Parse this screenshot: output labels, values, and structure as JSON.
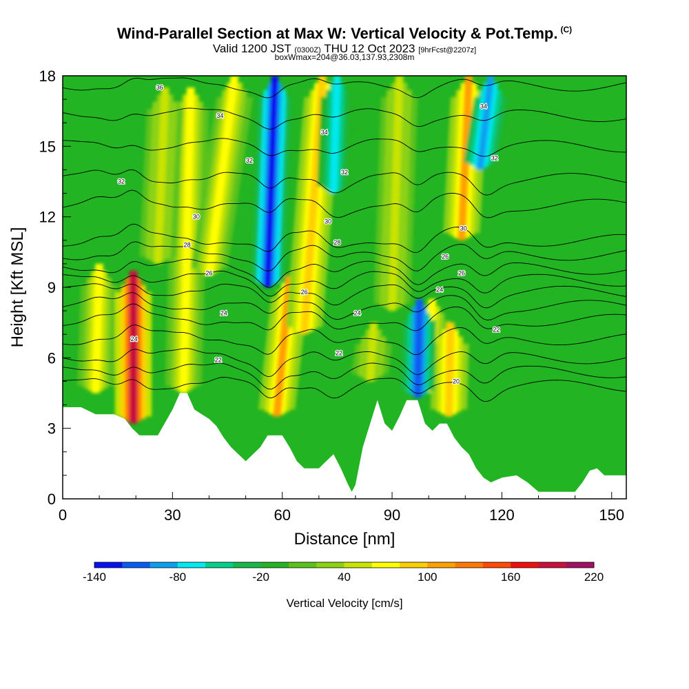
{
  "header": {
    "title": "Wind-Parallel Section at Max W: Vertical Velocity & Pot.Temp.",
    "copyright": "(C)",
    "valid_prefix": "Valid 1200 JST",
    "utc": "(0300Z)",
    "valid_date": "THU 12 Oct 2023",
    "forecast": "[9hrFcst@2207z]",
    "box_info": "boxWmax=204@36.03,137.93,2308m"
  },
  "chart_data": {
    "type": "heatmap",
    "xlabel": "Distance [nm]",
    "ylabel": "Height [Kft MSL]",
    "xlim": [
      0,
      154
    ],
    "ylim": [
      0,
      18
    ],
    "x_ticks": [
      "0",
      "30",
      "60",
      "90",
      "120",
      "150"
    ],
    "y_ticks": [
      "0",
      "3",
      "6",
      "9",
      "12",
      "15",
      "18"
    ],
    "x_tick_values": [
      0,
      30,
      60,
      90,
      120,
      150
    ],
    "y_tick_values": [
      0,
      3,
      6,
      9,
      12,
      15,
      18
    ],
    "colorbar": {
      "label": "Vertical Velocity [cm/s]",
      "tick_labels": [
        "-140",
        "-80",
        "-20",
        "40",
        "100",
        "160",
        "220"
      ],
      "tick_values": [
        -140,
        -80,
        -20,
        40,
        100,
        160,
        220
      ],
      "levels": [
        -140,
        -120,
        -100,
        -80,
        -60,
        -40,
        -20,
        0,
        20,
        40,
        60,
        80,
        100,
        120,
        140,
        160,
        180,
        200,
        220
      ],
      "colors": [
        "#0a10f0",
        "#0a5cf0",
        "#0aa0f0",
        "#00e8f0",
        "#00d08c",
        "#18b84c",
        "#22b422",
        "#5ac21a",
        "#8cd212",
        "#c8e400",
        "#ffff00",
        "#ffd000",
        "#ffa000",
        "#ff7800",
        "#ff4a00",
        "#f01010",
        "#c8103c",
        "#a01064"
      ]
    },
    "background_color": "#22b422",
    "updraft_columns": [
      {
        "x": 9,
        "x2": 10,
        "y_bottom": 4.5,
        "y_top": 10.0,
        "w": 60
      },
      {
        "x": 19.3,
        "x2": 19.3,
        "y_bottom": 3.2,
        "y_top": 9.7,
        "w": 180
      },
      {
        "x": 33,
        "x2": 35,
        "y_bottom": 4.5,
        "y_top": 17.5,
        "w": 60
      },
      {
        "x": 26,
        "x2": 28,
        "y_bottom": 10,
        "y_top": 17.5,
        "w": 40
      },
      {
        "x": 40,
        "x2": 47,
        "y_bottom": 9.5,
        "y_top": 18,
        "w": 60
      },
      {
        "x": 58.5,
        "x2": 62,
        "y_bottom": 3.5,
        "y_top": 9.5,
        "w": 100
      },
      {
        "x": 66,
        "x2": 71,
        "y_bottom": 7,
        "y_top": 18,
        "w": 80
      },
      {
        "x": 84,
        "x2": 85,
        "y_bottom": 5.0,
        "y_top": 7.5,
        "w": 50
      },
      {
        "x": 90,
        "x2": 92,
        "y_bottom": 8,
        "y_top": 18,
        "w": 40
      },
      {
        "x": 99.5,
        "x2": 101,
        "y_bottom": 4.5,
        "y_top": 8.5,
        "w": 60
      },
      {
        "x": 105.5,
        "x2": 106,
        "y_bottom": 3.5,
        "y_top": 7.5,
        "w": 90
      },
      {
        "x": 109,
        "x2": 111,
        "y_bottom": 11,
        "y_top": 18,
        "w": 100
      }
    ],
    "downdraft_columns": [
      {
        "x": 56,
        "x2": 58,
        "y_bottom": 9,
        "y_top": 18,
        "w": -130
      },
      {
        "x": 74,
        "x2": 75,
        "y_bottom": 13,
        "y_top": 18,
        "w": -70
      },
      {
        "x": 97,
        "x2": 97.5,
        "y_bottom": 4.3,
        "y_top": 8.5,
        "w": -110
      },
      {
        "x": 114,
        "x2": 117,
        "y_bottom": 14,
        "y_top": 18,
        "w": -90
      }
    ],
    "terrain": [
      [
        0,
        3.9
      ],
      [
        5,
        3.9
      ],
      [
        9,
        3.6
      ],
      [
        14,
        3.6
      ],
      [
        17,
        3.4
      ],
      [
        19,
        3.0
      ],
      [
        21,
        2.7
      ],
      [
        26,
        2.7
      ],
      [
        30,
        3.8
      ],
      [
        32,
        4.5
      ],
      [
        34,
        4.5
      ],
      [
        36,
        3.8
      ],
      [
        38,
        3.6
      ],
      [
        40,
        3.4
      ],
      [
        42,
        3.1
      ],
      [
        44,
        2.6
      ],
      [
        46,
        2.2
      ],
      [
        48,
        1.9
      ],
      [
        50,
        1.6
      ],
      [
        52,
        1.9
      ],
      [
        54,
        2.2
      ],
      [
        56,
        2.7
      ],
      [
        58,
        2.7
      ],
      [
        60,
        2.7
      ],
      [
        62,
        2.2
      ],
      [
        64,
        1.6
      ],
      [
        66,
        1.3
      ],
      [
        70,
        1.3
      ],
      [
        72,
        1.6
      ],
      [
        74,
        1.9
      ],
      [
        76,
        1.3
      ],
      [
        78,
        0.6
      ],
      [
        79,
        0.3
      ],
      [
        80,
        0.6
      ],
      [
        82,
        2.2
      ],
      [
        84,
        3.2
      ],
      [
        86,
        4.2
      ],
      [
        88,
        3.2
      ],
      [
        90,
        2.9
      ],
      [
        92,
        3.5
      ],
      [
        94,
        4.2
      ],
      [
        97,
        4.2
      ],
      [
        99,
        3.2
      ],
      [
        101,
        2.9
      ],
      [
        103,
        3.2
      ],
      [
        105,
        3.2
      ],
      [
        107,
        2.6
      ],
      [
        109,
        2.2
      ],
      [
        111,
        1.9
      ],
      [
        113,
        1.3
      ],
      [
        115,
        0.9
      ],
      [
        117,
        0.7
      ],
      [
        120,
        0.9
      ],
      [
        124,
        1.0
      ],
      [
        127,
        0.7
      ],
      [
        130,
        0.3
      ],
      [
        140,
        0.3
      ],
      [
        142,
        0.7
      ],
      [
        144,
        1.2
      ],
      [
        146,
        1.3
      ],
      [
        148,
        1.0
      ],
      [
        154,
        1.0
      ]
    ],
    "isentropes": [
      {
        "value": 20,
        "base_y": 4.8
      },
      {
        "value": 21,
        "base_y": 5.4
      },
      {
        "value": 22,
        "base_y": 6.0
      },
      {
        "value": 23,
        "base_y": 6.8
      },
      {
        "value": 24,
        "base_y": 7.6
      },
      {
        "value": 25,
        "base_y": 8.2
      },
      {
        "value": 26,
        "base_y": 8.8
      },
      {
        "value": 27,
        "base_y": 9.3
      },
      {
        "value": 28,
        "base_y": 9.8
      },
      {
        "value": 29,
        "base_y": 10.4
      },
      {
        "value": 30,
        "base_y": 11.0
      },
      {
        "value": 31,
        "base_y": 12.5
      },
      {
        "value": 32,
        "base_y": 13.6
      },
      {
        "value": 33,
        "base_y": 15.0
      },
      {
        "value": 34,
        "base_y": 16.3
      },
      {
        "value": 35,
        "base_y": 17.6
      }
    ],
    "contour_labels": [
      {
        "text": "36",
        "x": 26.5,
        "y": 17.5
      },
      {
        "text": "34",
        "x": 43,
        "y": 16.3
      },
      {
        "text": "34",
        "x": 71.5,
        "y": 15.6
      },
      {
        "text": "34",
        "x": 115,
        "y": 16.7
      },
      {
        "text": "32",
        "x": 51,
        "y": 14.4
      },
      {
        "text": "32",
        "x": 16,
        "y": 13.5
      },
      {
        "text": "32",
        "x": 77,
        "y": 13.9
      },
      {
        "text": "32",
        "x": 118,
        "y": 14.5
      },
      {
        "text": "30",
        "x": 36.5,
        "y": 12.0
      },
      {
        "text": "30",
        "x": 72.5,
        "y": 11.8
      },
      {
        "text": "30",
        "x": 109.5,
        "y": 11.5
      },
      {
        "text": "28",
        "x": 34,
        "y": 10.8
      },
      {
        "text": "28",
        "x": 75,
        "y": 10.9
      },
      {
        "text": "26",
        "x": 104.5,
        "y": 10.3
      },
      {
        "text": "26",
        "x": 40,
        "y": 9.6
      },
      {
        "text": "26",
        "x": 66,
        "y": 8.8
      },
      {
        "text": "26",
        "x": 109,
        "y": 9.6
      },
      {
        "text": "24",
        "x": 103,
        "y": 8.9
      },
      {
        "text": "24",
        "x": 44,
        "y": 7.9
      },
      {
        "text": "24",
        "x": 80.5,
        "y": 7.9
      },
      {
        "text": "24",
        "x": 19.5,
        "y": 6.8
      },
      {
        "text": "22",
        "x": 75.5,
        "y": 6.2
      },
      {
        "text": "22",
        "x": 118.5,
        "y": 7.2
      },
      {
        "text": "22",
        "x": 42.5,
        "y": 5.9
      },
      {
        "text": "20",
        "x": 107.5,
        "y": 5.0
      }
    ]
  }
}
